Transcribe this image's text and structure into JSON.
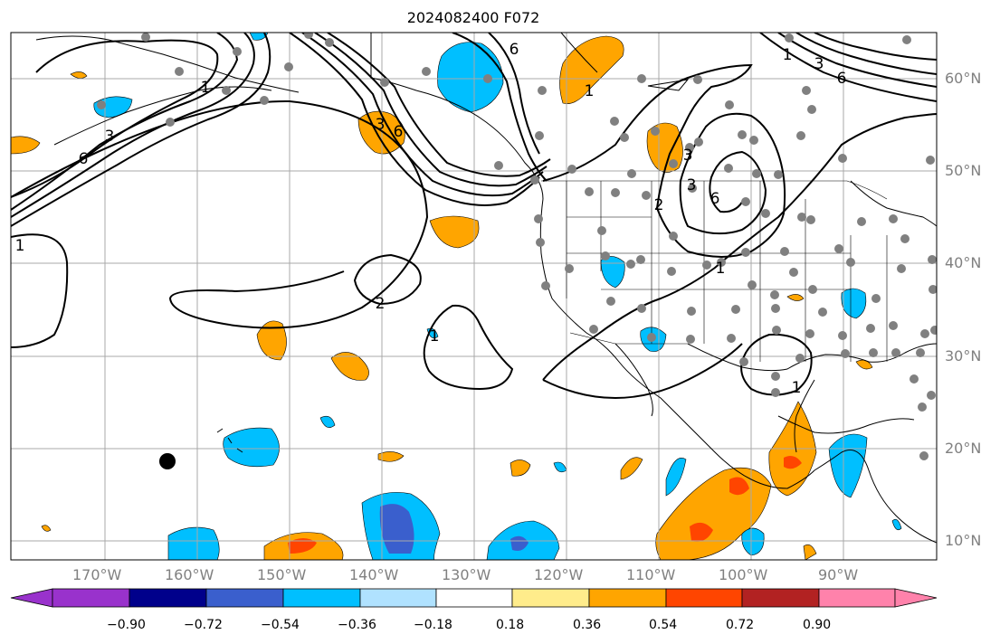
{
  "map": {
    "title": "2024082400 F072",
    "lon_labels": [
      "170°W",
      "160°W",
      "150°W",
      "140°W",
      "130°W",
      "120°W",
      "110°W",
      "100°W",
      "90°W"
    ],
    "lat_labels": [
      "60°N",
      "50°N",
      "40°N",
      "30°N",
      "20°N",
      "10°N"
    ],
    "contour_labels": [
      "6",
      "3",
      "1",
      "1",
      "3",
      "6",
      "1",
      "6",
      "3",
      "2",
      "1",
      "2",
      "1",
      "1",
      "3",
      "6",
      "6",
      "3",
      "1"
    ],
    "colorbar": {
      "ticks": [
        "−0.90",
        "−0.72",
        "−0.54",
        "−0.36",
        "−0.18",
        "0.18",
        "0.36",
        "0.54",
        "0.72",
        "0.90"
      ],
      "colors": [
        "#9932cc",
        "#00008b",
        "#3a5fcd",
        "#00bfff",
        "#b0e2ff",
        "#ffffff",
        "#ffec8b",
        "#ffa500",
        "#ff4500",
        "#b22222",
        "#ff82ab"
      ]
    },
    "colors": {
      "grid": "#a9a9a9",
      "contour": "#000000",
      "station": "#808080",
      "pos_light": "#ffa500",
      "pos_strong": "#ff4500",
      "pos_weak": "#ffec8b",
      "neg_light": "#00bfff",
      "neg_mid": "#3a5fcd",
      "neg_strong": "#00008b"
    }
  }
}
